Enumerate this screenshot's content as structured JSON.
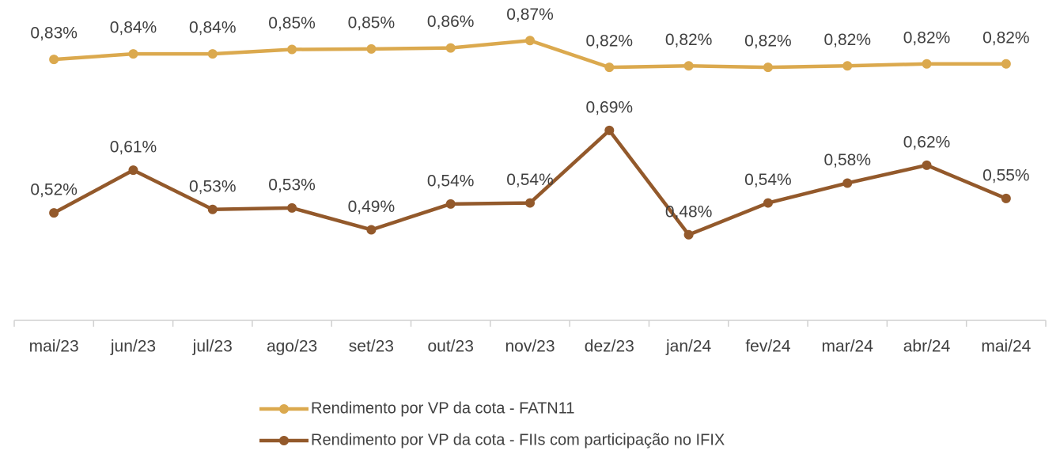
{
  "chart_data": {
    "type": "line",
    "categories": [
      "mai/23",
      "jun/23",
      "jul/23",
      "ago/23",
      "set/23",
      "out/23",
      "nov/23",
      "dez/23",
      "jan/24",
      "fev/24",
      "mar/24",
      "abr/24",
      "mai/24"
    ],
    "series": [
      {
        "name": "Rendimento por VP da cota - FATN11",
        "color": "#dba94e",
        "values": [
          0.833,
          0.844,
          0.844,
          0.853,
          0.854,
          0.856,
          0.871,
          0.817,
          0.82,
          0.817,
          0.82,
          0.824,
          0.824
        ],
        "value_labels": [
          "0,83%",
          "0,84%",
          "0,84%",
          "0,85%",
          "0,85%",
          "0,86%",
          "0,87%",
          "0,82%",
          "0,82%",
          "0,82%",
          "0,82%",
          "0,82%",
          "0,82%"
        ]
      },
      {
        "name": "Rendimento por VP da cota - FIIs com participação no IFIX",
        "color": "#93592b",
        "values": [
          0.524,
          0.61,
          0.531,
          0.534,
          0.49,
          0.542,
          0.544,
          0.69,
          0.48,
          0.544,
          0.584,
          0.62,
          0.553
        ],
        "value_labels": [
          "0,52%",
          "0,61%",
          "0,53%",
          "0,53%",
          "0,49%",
          "0,54%",
          "0,54%",
          "0,69%",
          "0,48%",
          "0,54%",
          "0,58%",
          "0,62%",
          "0,55%"
        ]
      }
    ],
    "ylim": [
      0.4,
      0.9
    ],
    "legend": "bottom"
  }
}
